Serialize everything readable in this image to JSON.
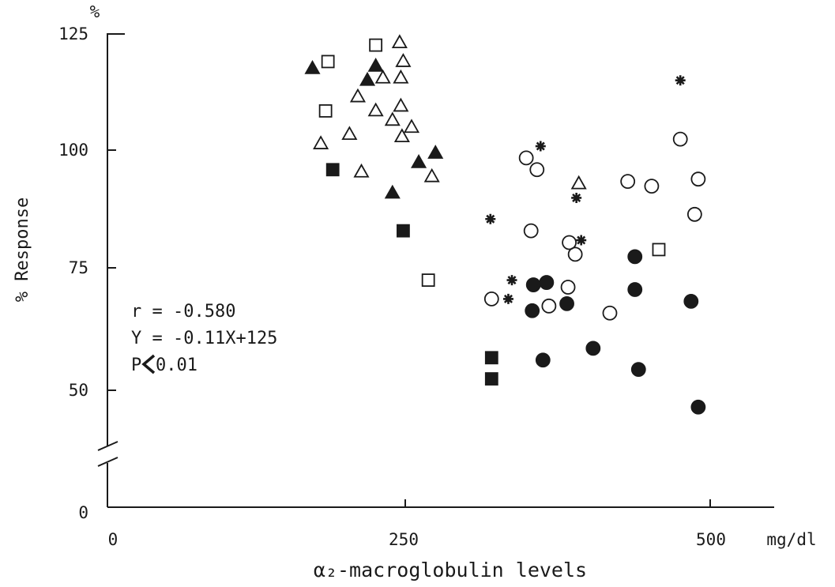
{
  "chart_data": {
    "type": "scatter",
    "title": "",
    "xlabel": "α₂-macroglobulin levels",
    "ylabel": "% Response",
    "x_unit": "mg/dl",
    "y_unit": "%",
    "xlim": [
      0,
      550
    ],
    "ylim": [
      0,
      125
    ],
    "y_axis_break": "between 0 and 50",
    "grid": false,
    "x_ticks": [
      {
        "value": 0,
        "label": "0"
      },
      {
        "value": 250,
        "label": "250"
      },
      {
        "value": 500,
        "label": "500"
      }
    ],
    "y_ticks": [
      {
        "value": 0,
        "label": "0"
      },
      {
        "value": 50,
        "label": "50"
      },
      {
        "value": 75,
        "label": "75"
      },
      {
        "value": 100,
        "label": "100"
      },
      {
        "value": 125,
        "label": "125"
      }
    ],
    "annotations": {
      "r": "r = -0.580",
      "equation": "Y = -0.11X+125",
      "p": "P",
      "p_value": "0.01"
    },
    "series": [
      {
        "marker": "open-triangle",
        "points": [
          [
            240,
            122.5
          ],
          [
            243,
            118.5
          ],
          [
            226,
            115
          ],
          [
            241,
            115
          ],
          [
            205,
            111
          ],
          [
            241,
            109
          ],
          [
            234,
            106
          ],
          [
            220,
            108
          ],
          [
            250,
            104.5
          ],
          [
            242,
            102.5
          ],
          [
            198,
            103
          ],
          [
            174,
            101
          ],
          [
            208,
            95
          ],
          [
            267,
            94
          ],
          [
            390,
            92.5
          ]
        ]
      },
      {
        "marker": "filled-triangle",
        "points": [
          [
            167,
            117
          ],
          [
            220,
            117.5
          ],
          [
            213,
            114.5
          ],
          [
            270,
            99
          ],
          [
            256,
            97
          ],
          [
            234,
            90.5
          ]
        ]
      },
      {
        "marker": "open-square",
        "points": [
          [
            180,
            118.5
          ],
          [
            220,
            122
          ],
          [
            178,
            108
          ],
          [
            264,
            72
          ],
          [
            457,
            78.5
          ]
        ]
      },
      {
        "marker": "filled-square",
        "points": [
          [
            184,
            95.5
          ],
          [
            243,
            82.5
          ],
          [
            317,
            55.5
          ],
          [
            317,
            51
          ]
        ]
      },
      {
        "marker": "open-circle",
        "points": [
          [
            346,
            98
          ],
          [
            355,
            95.5
          ],
          [
            350,
            82.5
          ],
          [
            475,
            102
          ],
          [
            431,
            93
          ],
          [
            451,
            92
          ],
          [
            490,
            93.5
          ],
          [
            487,
            86
          ],
          [
            382,
            80
          ],
          [
            387,
            77.5
          ],
          [
            317,
            68
          ],
          [
            365,
            66.5
          ],
          [
            381,
            70.5
          ],
          [
            416,
            65
          ]
        ]
      },
      {
        "marker": "filled-circle",
        "points": [
          [
            352,
            71
          ],
          [
            363,
            71.5
          ],
          [
            351,
            65.5
          ],
          [
            380,
            67
          ],
          [
            437,
            77
          ],
          [
            437,
            70
          ],
          [
            484,
            67.5
          ],
          [
            360,
            55
          ],
          [
            402,
            57.5
          ],
          [
            440,
            53
          ],
          [
            490,
            45
          ]
        ]
      },
      {
        "marker": "asterisk",
        "points": [
          [
            358,
            100.5
          ],
          [
            475,
            114.5
          ],
          [
            316,
            85
          ],
          [
            388,
            89.5
          ],
          [
            392,
            80.5
          ],
          [
            334,
            72
          ],
          [
            331,
            68
          ]
        ]
      }
    ]
  }
}
